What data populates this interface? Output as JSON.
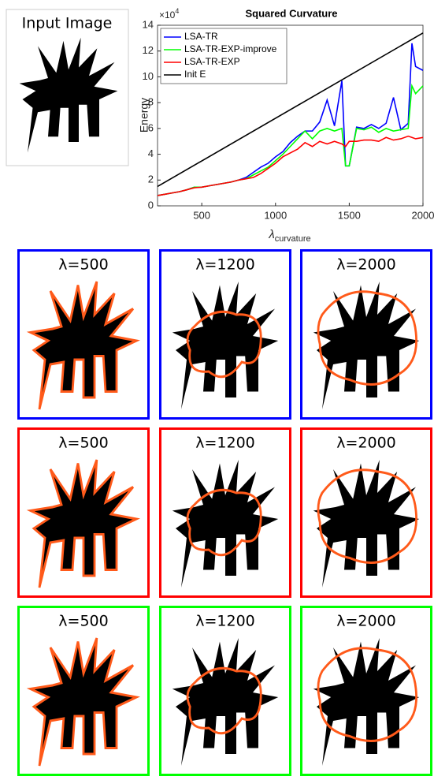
{
  "chart_data": {
    "type": "line",
    "title": "Squared Curvature",
    "y_scale_label": {
      "base": "×10",
      "exponent": "4"
    },
    "y_label": "Energy",
    "x_label": {
      "symbol": "λ",
      "subscript": "curvature"
    },
    "x": [
      200,
      250,
      300,
      350,
      400,
      450,
      500,
      550,
      600,
      650,
      700,
      750,
      800,
      850,
      900,
      950,
      1000,
      1050,
      1100,
      1150,
      1200,
      1250,
      1300,
      1350,
      1400,
      1450,
      1475,
      1500,
      1550,
      1600,
      1650,
      1700,
      1750,
      1800,
      1850,
      1900,
      1925,
      1950,
      2000
    ],
    "series": [
      {
        "name": "LSA-TR",
        "color": "#0000ff",
        "values": [
          0.8,
          0.9,
          1.0,
          1.1,
          1.25,
          1.45,
          1.45,
          1.55,
          1.65,
          1.75,
          1.85,
          2.0,
          2.2,
          2.6,
          3.0,
          3.3,
          3.8,
          4.2,
          4.9,
          5.4,
          5.8,
          5.8,
          6.5,
          8.2,
          6.2,
          9.7,
          3.1,
          3.1,
          6.1,
          6.0,
          6.3,
          6.0,
          6.4,
          8.4,
          5.9,
          6.4,
          12.6,
          10.8,
          10.5
        ]
      },
      {
        "name": "LSA-TR-EXP-improve",
        "color": "#00ff00",
        "values": [
          0.8,
          0.9,
          1.0,
          1.1,
          1.25,
          1.45,
          1.45,
          1.55,
          1.65,
          1.75,
          1.85,
          2.0,
          2.1,
          2.4,
          2.7,
          3.0,
          3.5,
          4.0,
          4.6,
          5.2,
          5.8,
          5.2,
          5.8,
          6.0,
          5.8,
          6.0,
          3.1,
          3.1,
          6.0,
          5.9,
          6.1,
          5.7,
          6.0,
          5.8,
          5.9,
          6.0,
          9.3,
          8.7,
          9.3
        ]
      },
      {
        "name": "LSA-TR-EXP",
        "color": "#ff0000",
        "values": [
          0.8,
          0.9,
          1.0,
          1.1,
          1.25,
          1.4,
          1.45,
          1.55,
          1.65,
          1.75,
          1.85,
          2.0,
          2.1,
          2.2,
          2.5,
          2.9,
          3.3,
          3.8,
          4.1,
          4.4,
          4.9,
          4.6,
          5.0,
          4.8,
          5.0,
          4.8,
          4.6,
          5.0,
          5.0,
          5.1,
          5.1,
          5.0,
          5.3,
          5.1,
          5.2,
          5.4,
          5.3,
          5.2,
          5.3
        ]
      },
      {
        "name": "Init E",
        "color": "#000000",
        "x": [
          200,
          2000
        ],
        "values": [
          1.5,
          13.4
        ]
      }
    ],
    "xlim": [
      200,
      2000
    ],
    "xticks": [
      500,
      1000,
      1500,
      2000
    ],
    "ylim": [
      0,
      14
    ],
    "yticks": [
      0,
      2,
      4,
      6,
      8,
      10,
      12,
      14
    ],
    "legend": "upper-left"
  },
  "input_image": {
    "label": "Input Image"
  },
  "panels": [
    {
      "color": "#0000ff",
      "labels": [
        "λ=500",
        "λ=1200",
        "λ=2000"
      ]
    },
    {
      "color": "#ff0000",
      "labels": [
        "λ=500",
        "λ=1200",
        "λ=2000"
      ]
    },
    {
      "color": "#00ff00",
      "labels": [
        "λ=500",
        "λ=1200",
        "λ=2000"
      ]
    }
  ]
}
